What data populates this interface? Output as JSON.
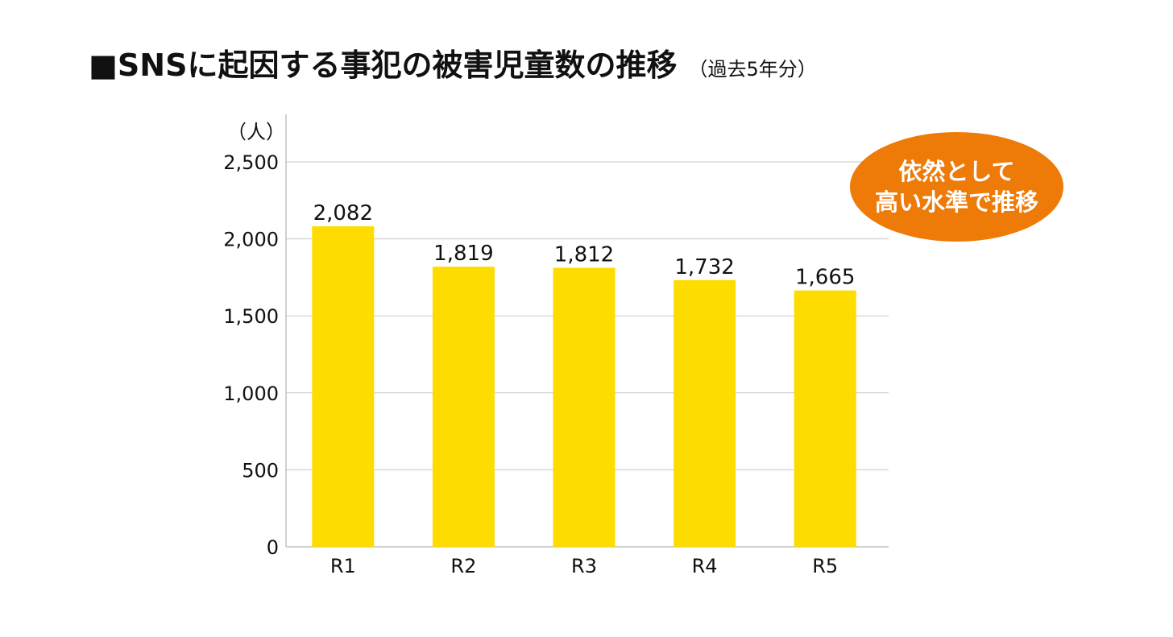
{
  "title": {
    "main": "■SNSに起因する事犯の被害児童数の推移",
    "sub": "（過去5年分）"
  },
  "callout": {
    "line1": "依然として",
    "line2": "高い水準で推移",
    "color": "#ee7a08"
  },
  "chart_data": {
    "type": "bar",
    "categories": [
      "R1",
      "R2",
      "R3",
      "R4",
      "R5"
    ],
    "values": [
      2082,
      1819,
      1812,
      1732,
      1665
    ],
    "value_labels": [
      "2,082",
      "1,819",
      "1,812",
      "1,732",
      "1,665"
    ],
    "yunit": "（人）",
    "ylim": [
      0,
      2500
    ],
    "yticks": [
      0,
      500,
      1000,
      1500,
      2000,
      2500
    ],
    "ytick_labels": [
      "0",
      "500",
      "1,000",
      "1,500",
      "2,000",
      "2,500"
    ],
    "grid": true,
    "bar_color": "#ffdc00",
    "grid_color": "#c8c8c8"
  }
}
